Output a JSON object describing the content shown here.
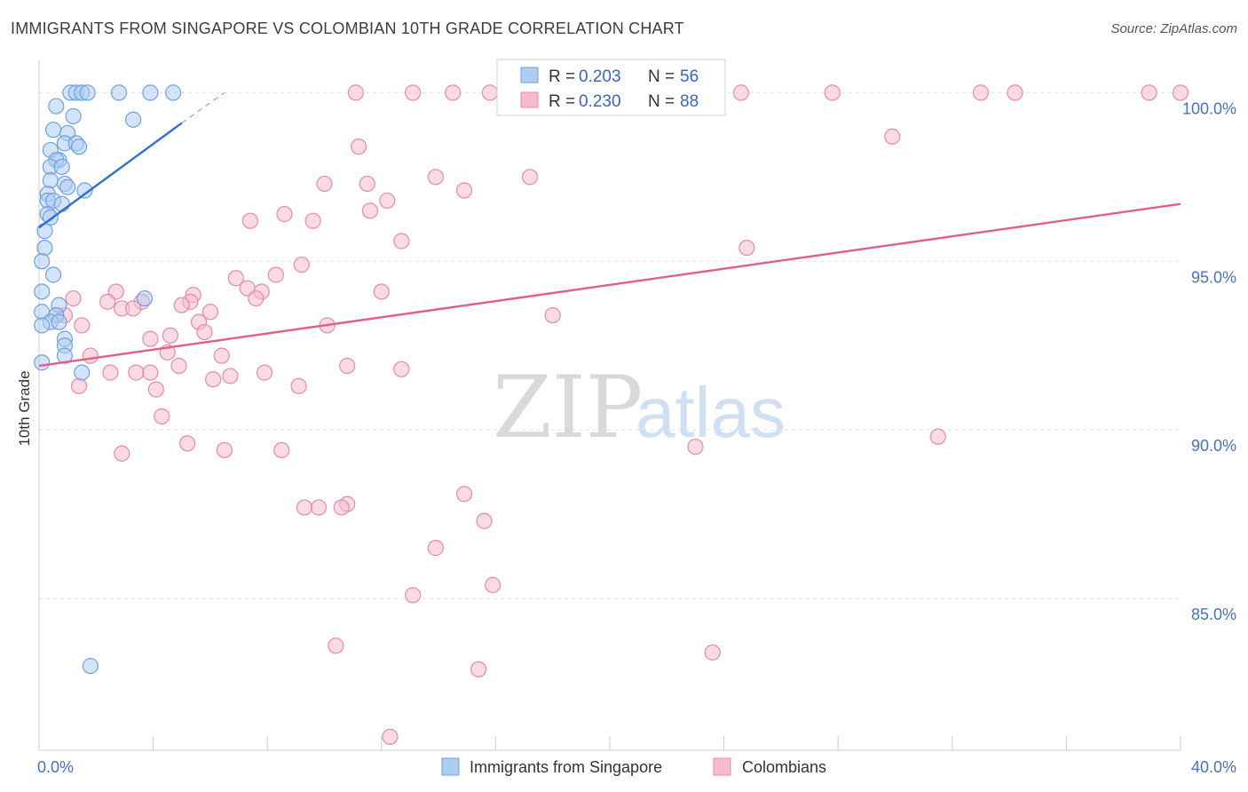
{
  "title": "IMMIGRANTS FROM SINGAPORE VS COLOMBIAN 10TH GRADE CORRELATION CHART",
  "source": "Source: ZipAtlas.com",
  "chart_data": {
    "type": "scatter",
    "ylabel": "10th Grade",
    "xlim": [
      0,
      40
    ],
    "ylim": [
      80.5,
      100.8
    ],
    "x_tick_labels": [
      "0.0%",
      "40.0%"
    ],
    "y_ticks": [
      85,
      90,
      95,
      100
    ],
    "y_tick_labels": [
      "85.0%",
      "90.0%",
      "95.0%",
      "100.0%"
    ],
    "watermark": {
      "zip": "ZIP",
      "atlas": "atlas"
    },
    "legend": {
      "r_label": "R =",
      "n_label": "N =",
      "entries": [
        {
          "name": "Immigrants from Singapore",
          "r": "0.203",
          "n": "56",
          "color": "#6fa0e0",
          "fill": "#aecdf2",
          "line": "#2f6fd0"
        },
        {
          "name": "Colombians",
          "r": "0.230",
          "n": "88",
          "color": "#e88aa8",
          "fill": "#f6bccd",
          "line": "#e0608a"
        }
      ]
    },
    "series": [
      {
        "name": "Immigrants from Singapore",
        "trend": {
          "x0": 0.0,
          "y0": 96.0,
          "x1": 5.0,
          "y1": 99.1,
          "dash_to_x": 6.5,
          "dash_to_y": 100.0
        },
        "points": [
          [
            1.1,
            100
          ],
          [
            1.3,
            100
          ],
          [
            1.5,
            100
          ],
          [
            1.7,
            100
          ],
          [
            2.8,
            100
          ],
          [
            3.9,
            100
          ],
          [
            4.7,
            100
          ],
          [
            0.6,
            99.6
          ],
          [
            1.2,
            99.3
          ],
          [
            3.3,
            99.2
          ],
          [
            0.5,
            98.9
          ],
          [
            1.0,
            98.8
          ],
          [
            0.9,
            98.5
          ],
          [
            1.3,
            98.5
          ],
          [
            1.4,
            98.4
          ],
          [
            0.4,
            98.3
          ],
          [
            0.7,
            98.0
          ],
          [
            0.6,
            98.0
          ],
          [
            0.4,
            97.8
          ],
          [
            0.8,
            97.8
          ],
          [
            0.4,
            97.4
          ],
          [
            0.9,
            97.3
          ],
          [
            1.0,
            97.2
          ],
          [
            0.3,
            97.0
          ],
          [
            1.6,
            97.1
          ],
          [
            0.3,
            96.8
          ],
          [
            0.5,
            96.8
          ],
          [
            0.8,
            96.7
          ],
          [
            0.3,
            96.4
          ],
          [
            0.4,
            96.3
          ],
          [
            0.2,
            95.9
          ],
          [
            0.2,
            95.4
          ],
          [
            0.1,
            95.0
          ],
          [
            0.5,
            94.6
          ],
          [
            0.1,
            94.1
          ],
          [
            3.7,
            93.9
          ],
          [
            0.7,
            93.7
          ],
          [
            0.1,
            93.5
          ],
          [
            0.6,
            93.4
          ],
          [
            0.4,
            93.2
          ],
          [
            0.7,
            93.2
          ],
          [
            0.1,
            93.1
          ],
          [
            0.9,
            92.7
          ],
          [
            0.9,
            92.5
          ],
          [
            0.9,
            92.2
          ],
          [
            0.1,
            92.0
          ],
          [
            1.5,
            91.7
          ],
          [
            1.8,
            83.0
          ]
        ]
      },
      {
        "name": "Colombians",
        "trend": {
          "x0": 0.0,
          "y0": 91.9,
          "x1": 40.0,
          "y1": 96.7
        },
        "points": [
          [
            11.1,
            100
          ],
          [
            13.1,
            100
          ],
          [
            14.5,
            100
          ],
          [
            15.8,
            100
          ],
          [
            19.0,
            100
          ],
          [
            22.2,
            100
          ],
          [
            24.6,
            100
          ],
          [
            27.8,
            100
          ],
          [
            33.0,
            100
          ],
          [
            34.2,
            100
          ],
          [
            38.9,
            100
          ],
          [
            40.0,
            100
          ],
          [
            11.2,
            98.4
          ],
          [
            29.9,
            98.7
          ],
          [
            13.9,
            97.5
          ],
          [
            17.2,
            97.5
          ],
          [
            10.0,
            97.3
          ],
          [
            11.5,
            97.3
          ],
          [
            14.9,
            97.1
          ],
          [
            12.2,
            96.8
          ],
          [
            11.6,
            96.5
          ],
          [
            8.6,
            96.4
          ],
          [
            9.6,
            96.2
          ],
          [
            7.4,
            96.2
          ],
          [
            12.7,
            95.6
          ],
          [
            24.8,
            95.4
          ],
          [
            9.2,
            94.9
          ],
          [
            8.3,
            94.6
          ],
          [
            6.9,
            94.5
          ],
          [
            7.3,
            94.2
          ],
          [
            2.7,
            94.1
          ],
          [
            7.8,
            94.1
          ],
          [
            12.0,
            94.1
          ],
          [
            5.4,
            94.0
          ],
          [
            7.6,
            93.9
          ],
          [
            1.2,
            93.9
          ],
          [
            2.4,
            93.8
          ],
          [
            3.6,
            93.8
          ],
          [
            5.3,
            93.8
          ],
          [
            5.0,
            93.7
          ],
          [
            2.9,
            93.6
          ],
          [
            3.3,
            93.6
          ],
          [
            6.0,
            93.5
          ],
          [
            18.0,
            93.4
          ],
          [
            0.6,
            93.4
          ],
          [
            0.9,
            93.4
          ],
          [
            5.6,
            93.2
          ],
          [
            10.1,
            93.1
          ],
          [
            1.5,
            93.1
          ],
          [
            5.8,
            92.9
          ],
          [
            4.6,
            92.8
          ],
          [
            3.9,
            92.7
          ],
          [
            4.5,
            92.3
          ],
          [
            6.4,
            92.2
          ],
          [
            1.8,
            92.2
          ],
          [
            4.9,
            91.9
          ],
          [
            10.8,
            91.9
          ],
          [
            12.7,
            91.8
          ],
          [
            2.5,
            91.7
          ],
          [
            3.4,
            91.7
          ],
          [
            3.9,
            91.7
          ],
          [
            7.9,
            91.7
          ],
          [
            6.7,
            91.6
          ],
          [
            6.1,
            91.5
          ],
          [
            9.1,
            91.3
          ],
          [
            4.1,
            91.2
          ],
          [
            1.4,
            91.3
          ],
          [
            4.3,
            90.4
          ],
          [
            31.5,
            89.8
          ],
          [
            5.2,
            89.6
          ],
          [
            6.5,
            89.4
          ],
          [
            2.9,
            89.3
          ],
          [
            8.5,
            89.4
          ],
          [
            23.0,
            89.5
          ],
          [
            14.9,
            88.1
          ],
          [
            9.3,
            87.7
          ],
          [
            9.8,
            87.7
          ],
          [
            10.8,
            87.8
          ],
          [
            10.6,
            87.7
          ],
          [
            15.6,
            87.3
          ],
          [
            13.9,
            86.5
          ],
          [
            15.9,
            85.4
          ],
          [
            13.1,
            85.1
          ],
          [
            10.4,
            83.6
          ],
          [
            23.6,
            83.4
          ],
          [
            15.4,
            82.9
          ],
          [
            12.3,
            80.9
          ]
        ]
      }
    ]
  }
}
